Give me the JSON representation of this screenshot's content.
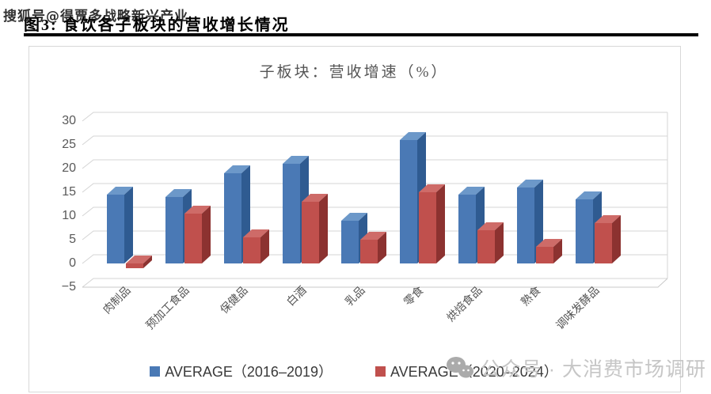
{
  "page": {
    "top_watermark": "搜狐号@得贾多战略新兴产业",
    "figure_title": "图3: 食饮各子板块的营收增长情况",
    "bottom_watermark": "公众号 · 大消费市场调研"
  },
  "chart_data": {
    "type": "bar",
    "style": "3d-clustered-column",
    "title": "子板块：营收增速（%）",
    "categories": [
      "肉制品",
      "预加工食品",
      "保健品",
      "白酒",
      "乳品",
      "零食",
      "烘焙食品",
      "熟食",
      "调味发酵品"
    ],
    "series": [
      {
        "name": "AVERAGE（2016–2019）",
        "color": "#4A79B5",
        "color_side": "#2F5B91",
        "color_top": "#6C98C9",
        "values": [
          14.5,
          14,
          19,
          21,
          9,
          26,
          14.5,
          16,
          13.5
        ]
      },
      {
        "name": "AVERAGE（2020–2024）",
        "color": "#C0504D",
        "color_side": "#8C3230",
        "color_top": "#CE6B68",
        "values": [
          -1,
          10.5,
          5.5,
          13,
          5,
          15,
          7,
          3.5,
          8.5
        ]
      }
    ],
    "ylim": [
      -5,
      30
    ],
    "yticks": [
      30,
      25,
      20,
      15,
      10,
      5,
      0,
      -5
    ],
    "grid": true,
    "legend_position": "bottom"
  }
}
